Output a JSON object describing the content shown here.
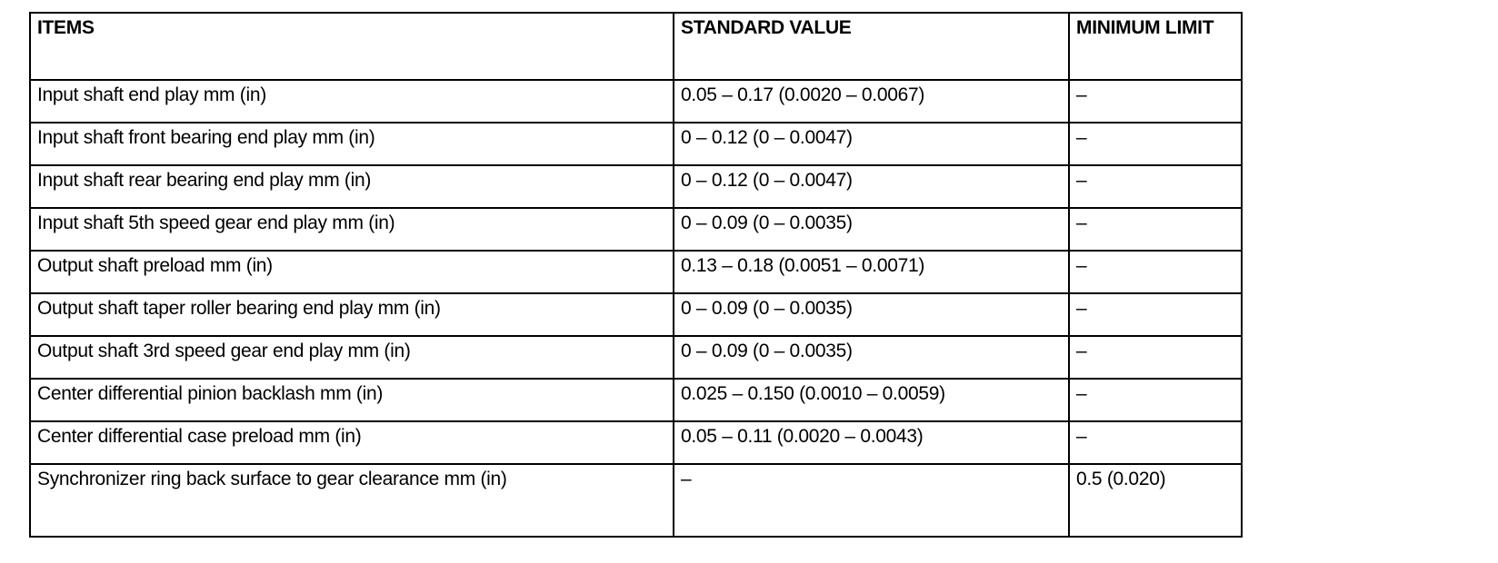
{
  "table": {
    "headers": [
      "ITEMS",
      "STANDARD VALUE",
      "MINIMUM LIMIT"
    ],
    "rows": [
      [
        "Input shaft end play mm (in)",
        "0.05 – 0.17 (0.0020 – 0.0067)",
        "–"
      ],
      [
        "Input shaft front bearing end play mm (in)",
        "0 – 0.12 (0 – 0.0047)",
        "–"
      ],
      [
        "Input shaft rear bearing end play mm (in)",
        "0 – 0.12 (0 – 0.0047)",
        "–"
      ],
      [
        "Input shaft 5th speed gear end play mm (in)",
        "0 – 0.09 (0 – 0.0035)",
        "–"
      ],
      [
        "Output shaft preload mm (in)",
        "0.13 – 0.18 (0.0051 – 0.0071)",
        "–"
      ],
      [
        "Output shaft taper roller bearing end play mm (in)",
        "0 – 0.09 (0 – 0.0035)",
        "–"
      ],
      [
        "Output shaft 3rd speed gear end play mm (in)",
        "0 – 0.09 (0 – 0.0035)",
        "–"
      ],
      [
        "Center differential pinion backlash mm (in)",
        "0.025 – 0.150 (0.0010 – 0.0059)",
        "–"
      ],
      [
        "Center differential case preload mm (in)",
        "0.05 – 0.11 (0.0020 – 0.0043)",
        "–"
      ],
      [
        "Synchronizer ring back surface to gear clearance mm (in)",
        "–",
        "0.5 (0.020)"
      ]
    ]
  }
}
